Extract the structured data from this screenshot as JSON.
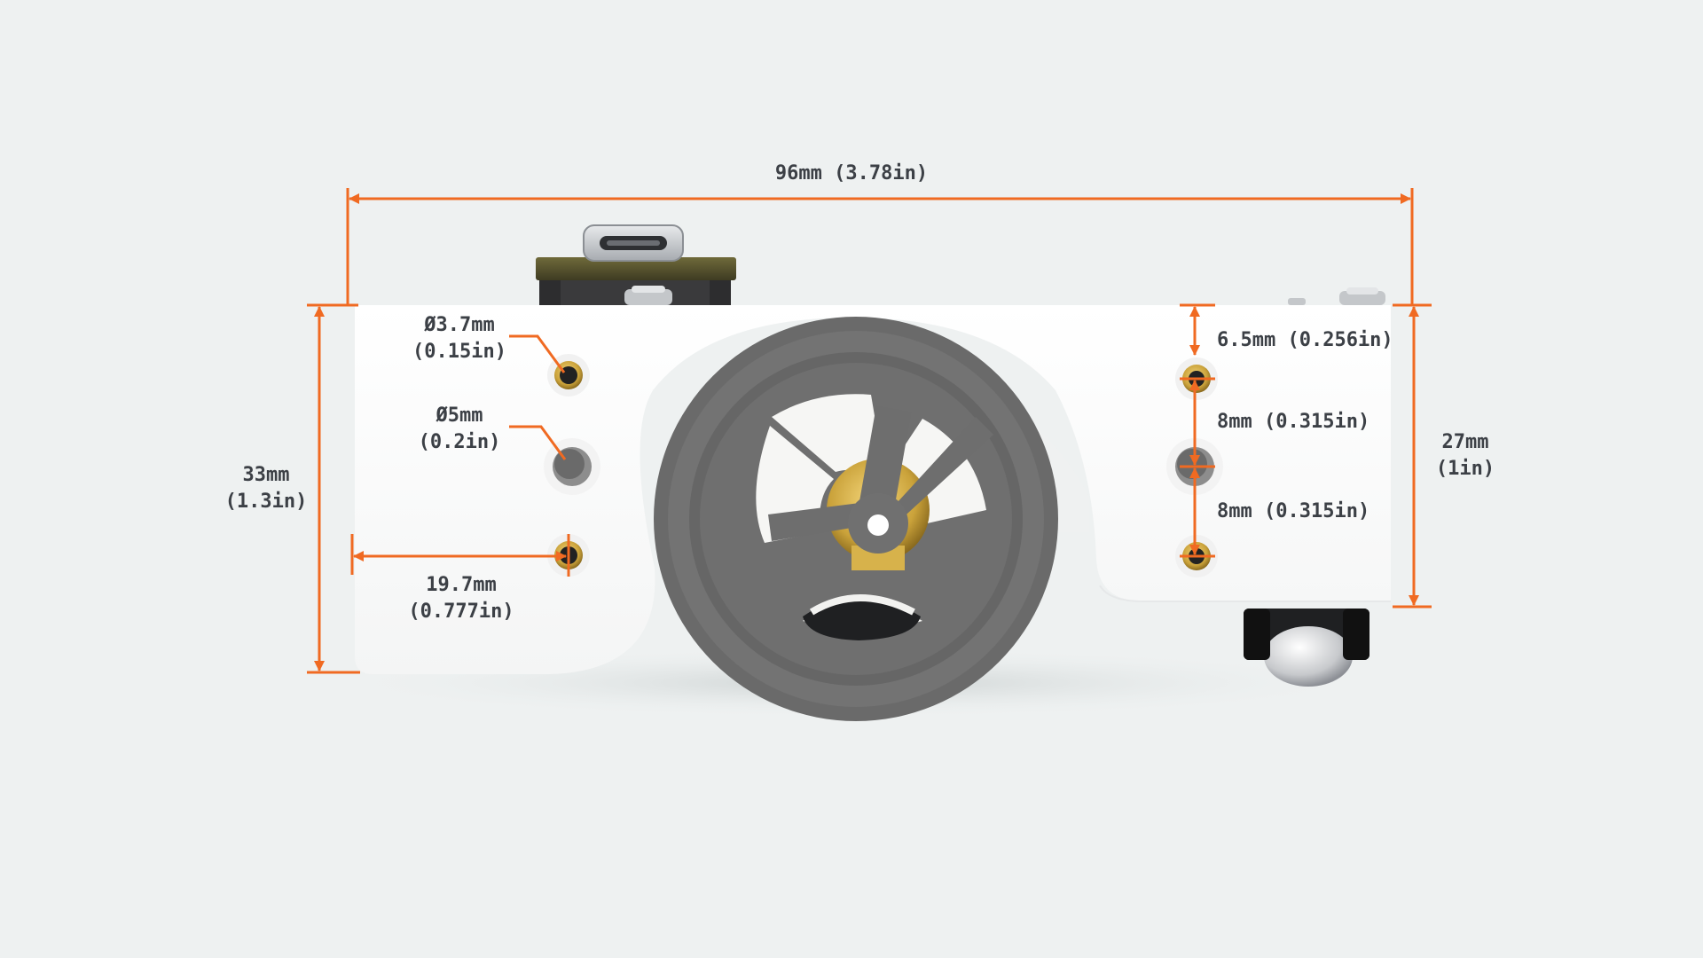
{
  "colors": {
    "background": "#eef1f1",
    "dimension_line": "#f06a22",
    "label_text": "#3c4046",
    "body": "#ffffff",
    "wheel": "#6e6e6e",
    "brass": "#caa23a"
  },
  "dimensions": {
    "overall_width": {
      "line1": "96mm (3.78in)"
    },
    "overall_height": {
      "line1": "33mm",
      "line2": "(1.3in)"
    },
    "body_height": {
      "line1": "27mm",
      "line2": "(1in)"
    },
    "small_hole_diameter": {
      "line1": "Ø3.7mm",
      "line2": "(0.15in)"
    },
    "large_hole_diameter": {
      "line1": "Ø5mm",
      "line2": "(0.2in)"
    },
    "hole_offset_from_edge": {
      "line1": "19.7mm",
      "line2": "(0.777in)"
    },
    "top_hole_offset": {
      "line1": "6.5mm (0.256in)"
    },
    "hole_spacing_upper": {
      "line1": "8mm (0.315in)"
    },
    "hole_spacing_lower": {
      "line1": "8mm (0.315in)"
    }
  },
  "icons": [
    "usb-c-connector-icon",
    "screw-icon",
    "wheel-icon",
    "caster-ball-icon"
  ]
}
